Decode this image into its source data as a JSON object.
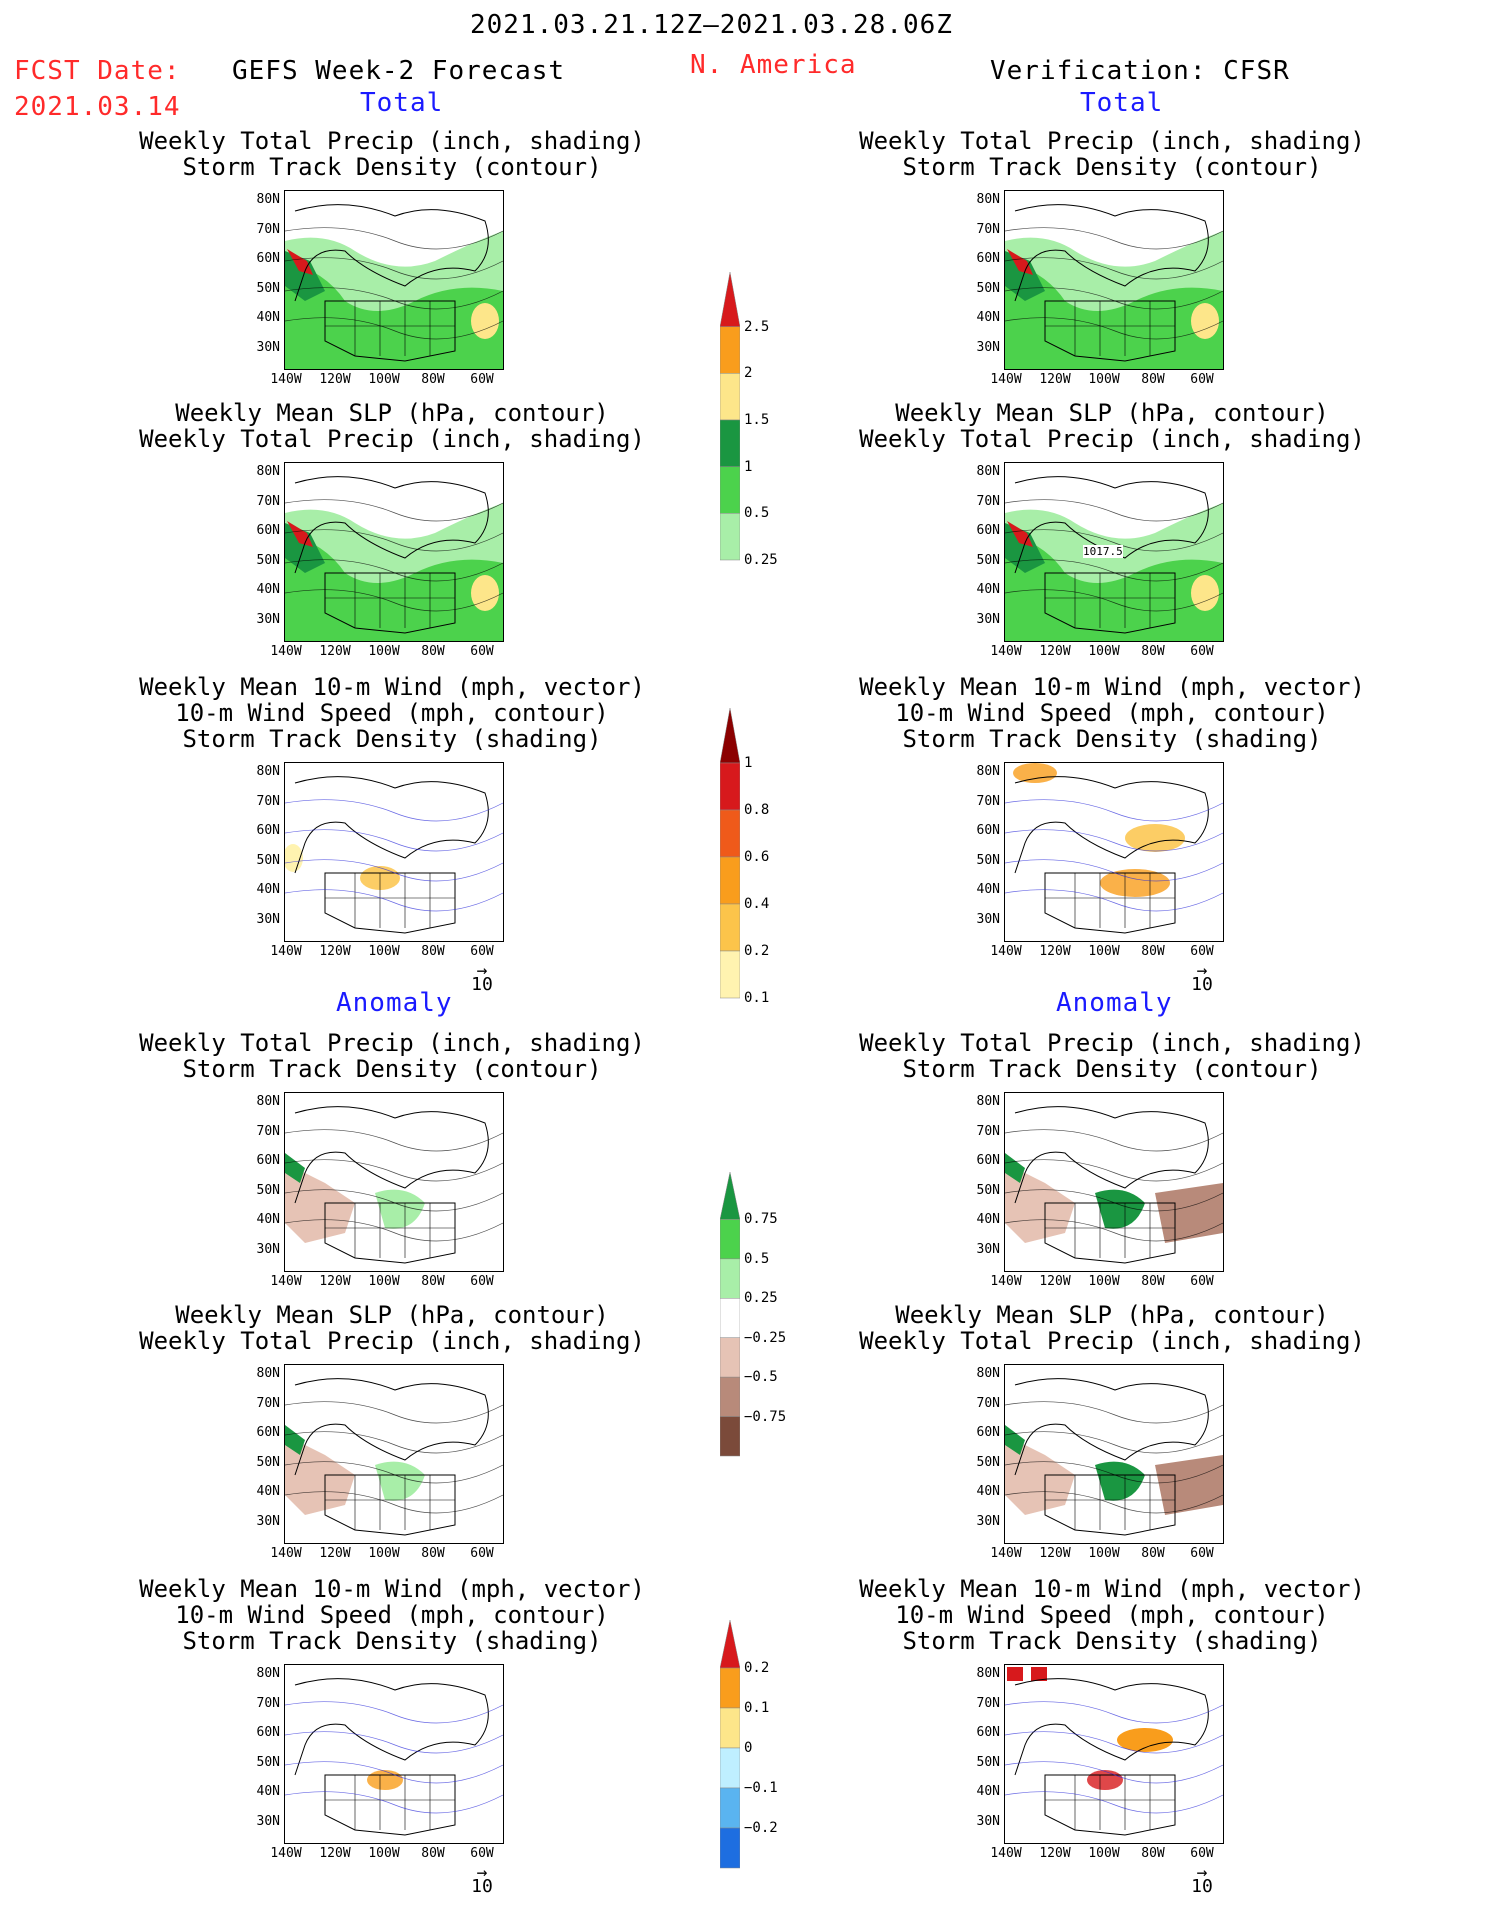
{
  "header": {
    "date_range": "2021.03.21.12Z–2021.03.28.06Z",
    "fcst_label": "FCST Date:",
    "fcst_date": "2021.03.14",
    "left_title": "GEFS Week-2 Forecast",
    "region": "N. America",
    "right_title": "Verification: CFSR"
  },
  "sections": {
    "total": "Total",
    "anomaly": "Anomaly"
  },
  "panel_titles": {
    "precip_track": [
      "Weekly Total Precip (inch, shading)",
      "Storm Track Density (contour)"
    ],
    "slp_precip": [
      "Weekly Mean SLP (hPa, contour)",
      "Weekly Total Precip (inch, shading)"
    ],
    "wind_track": [
      "Weekly Mean 10-m Wind (mph, vector)",
      "10-m Wind Speed (mph, contour)",
      "Storm Track Density (shading)"
    ]
  },
  "axes": {
    "lat_ticks": [
      "80N",
      "70N",
      "60N",
      "50N",
      "40N",
      "30N"
    ],
    "lon_ticks": [
      "140W",
      "120W",
      "100W",
      "80W",
      "60W"
    ],
    "vector_ref": "10"
  },
  "map_annotation": "1017.5",
  "colorbars": {
    "precip_total": {
      "labels": [
        "2.5",
        "2",
        "1.5",
        "1",
        "0.5",
        "0.25"
      ],
      "colors": [
        "#d7191c",
        "#f99d1c",
        "#fde68a",
        "#1a9641",
        "#4cd24c",
        "#a8eea8"
      ]
    },
    "track_total": {
      "labels": [
        "1",
        "0.8",
        "0.6",
        "0.4",
        "0.2",
        "0.1"
      ],
      "colors": [
        "#8b0000",
        "#d7191c",
        "#ef5a1a",
        "#f99d1c",
        "#fcc44a",
        "#fff3b0"
      ]
    },
    "precip_anom": {
      "labels": [
        "0.75",
        "0.5",
        "0.25",
        "−0.25",
        "−0.5",
        "−0.75"
      ],
      "colors": [
        "#1a9641",
        "#4cd24c",
        "#a8eea8",
        "#ffffff",
        "#e6c3b5",
        "#b88a7a",
        "#7b4a3a"
      ]
    },
    "track_anom": {
      "labels": [
        "0.2",
        "0.1",
        "0",
        "−0.1",
        "−0.2"
      ],
      "colors": [
        "#d7191c",
        "#f99d1c",
        "#fde68a",
        "#bfefff",
        "#5ab4f0",
        "#1e6ee0"
      ]
    }
  }
}
